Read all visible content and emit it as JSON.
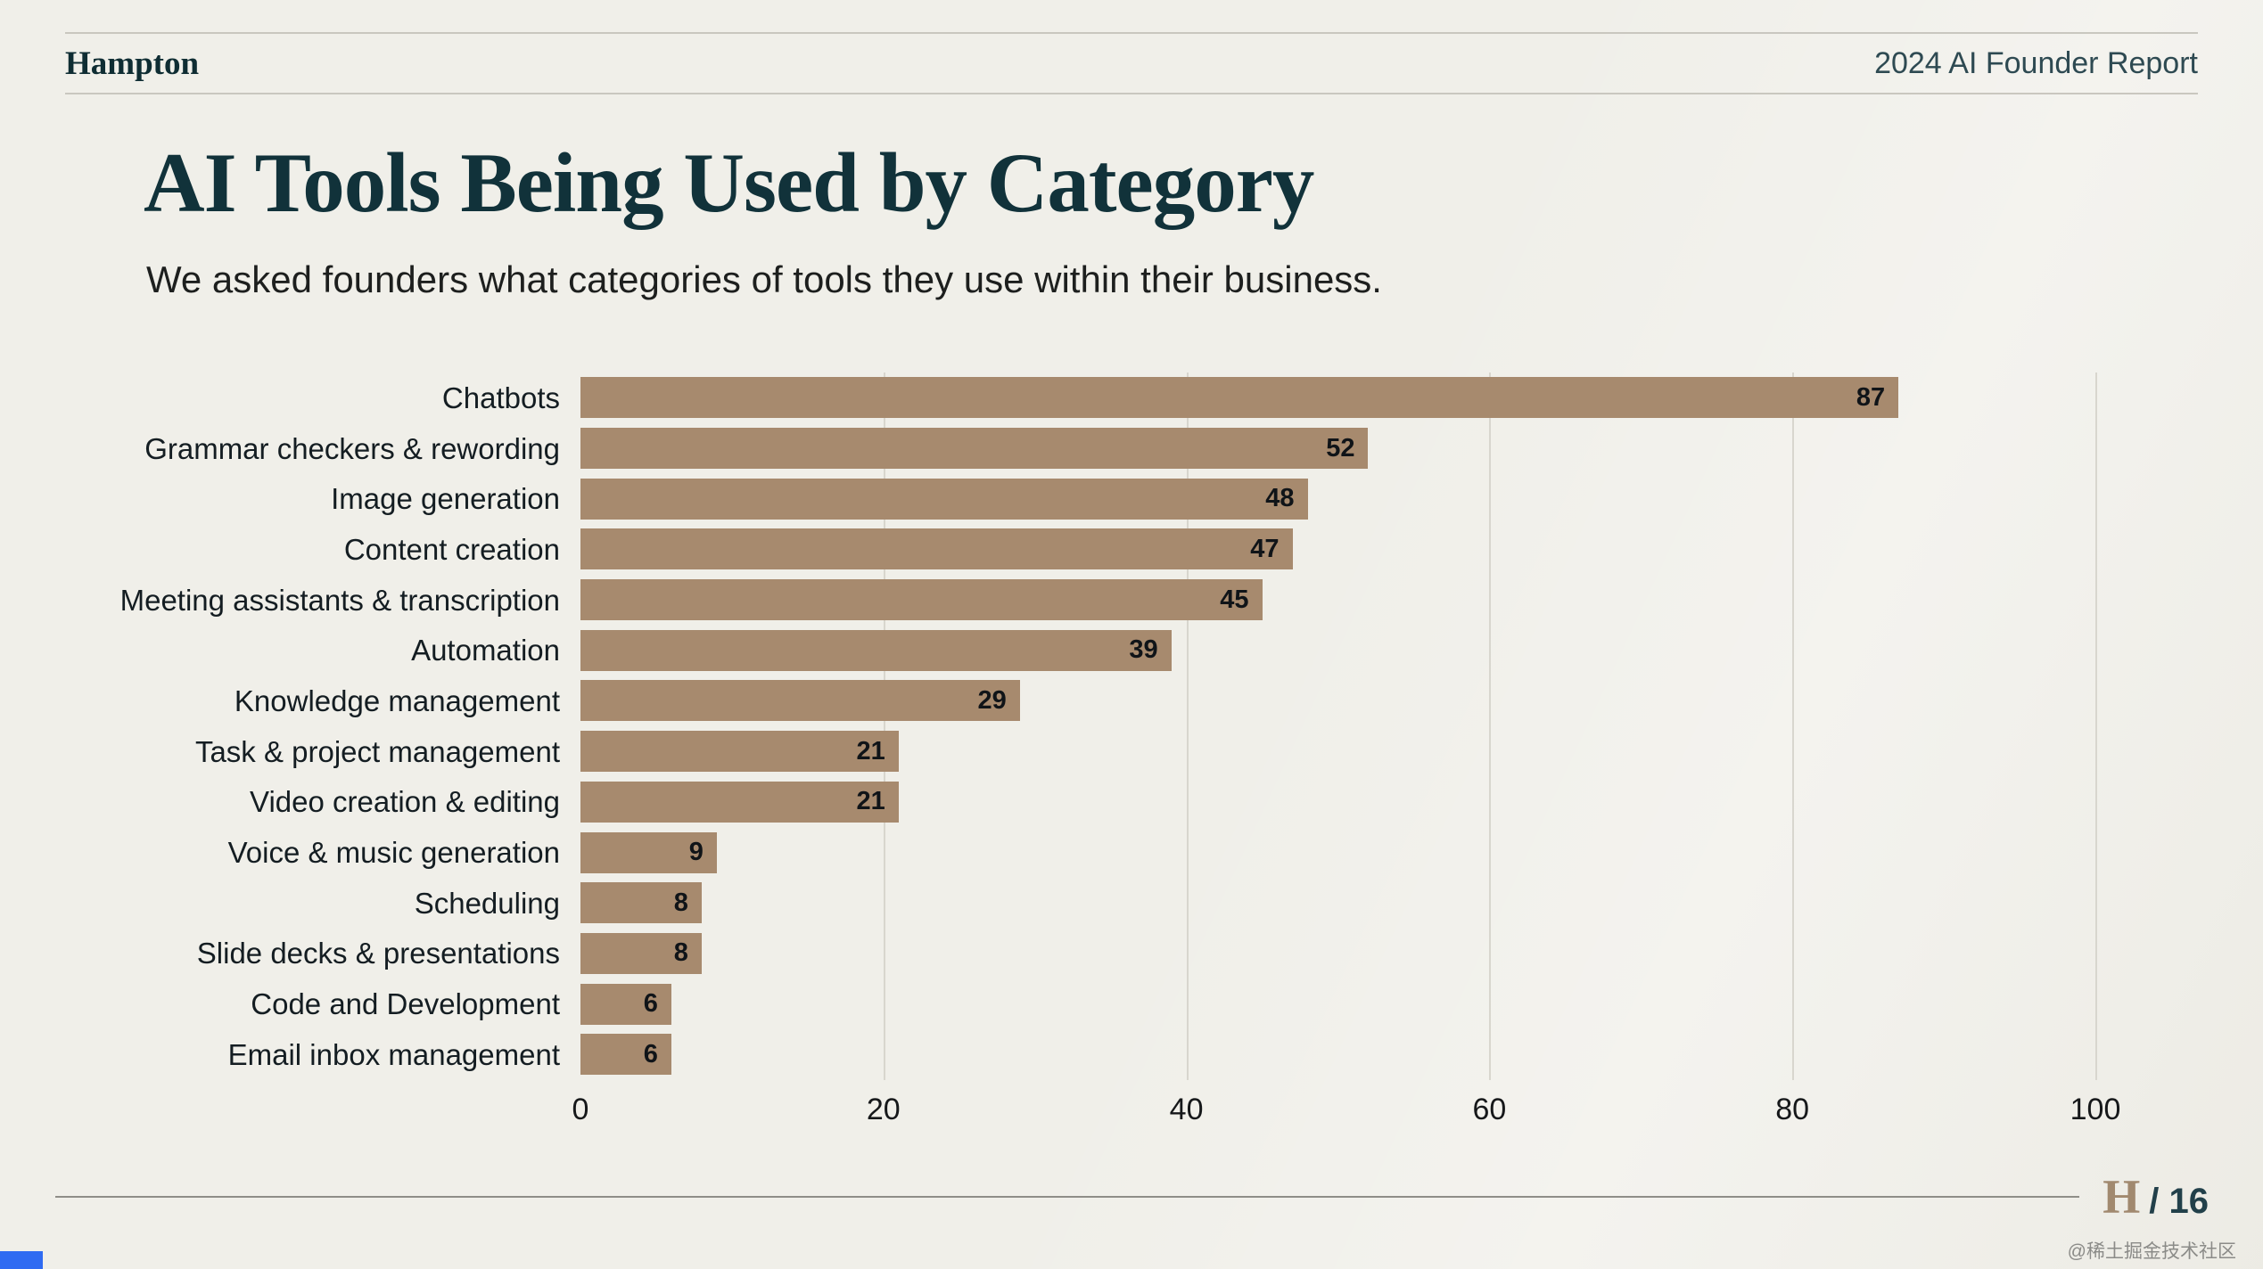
{
  "header": {
    "logo": "Hampton",
    "report_title": "2024 AI Founder Report"
  },
  "main": {
    "title": "AI Tools Being Used by Category",
    "subtitle": "We asked founders what categories of tools they use within their business."
  },
  "chart_data": {
    "type": "bar",
    "orientation": "horizontal",
    "title": "AI Tools Being Used by Category",
    "xlabel": "",
    "ylabel": "",
    "categories": [
      "Chatbots",
      "Grammar checkers & rewording",
      "Image generation",
      "Content creation",
      "Meeting assistants & transcription",
      "Automation",
      "Knowledge management",
      "Task & project management",
      "Video creation & editing",
      "Voice & music generation",
      "Scheduling",
      "Slide decks & presentations",
      "Code and Development",
      "Email inbox management"
    ],
    "values": [
      87,
      52,
      48,
      47,
      45,
      39,
      29,
      21,
      21,
      9,
      8,
      8,
      6,
      6
    ],
    "xlim": [
      0,
      100
    ],
    "x_ticks": [
      0,
      20,
      40,
      60,
      80,
      100
    ],
    "grid": true,
    "legend": "none"
  },
  "colors": {
    "background": "#f0efe9",
    "bar": "#a78a6e",
    "title_text": "#11323a",
    "gridline": "#d8d6ce",
    "footer_logo": "#a1896f",
    "corner_accent": "#2f6bf2"
  },
  "footer": {
    "page_logo": "H",
    "page_number": "/ 16",
    "watermark": "@稀土掘金技术社区"
  }
}
